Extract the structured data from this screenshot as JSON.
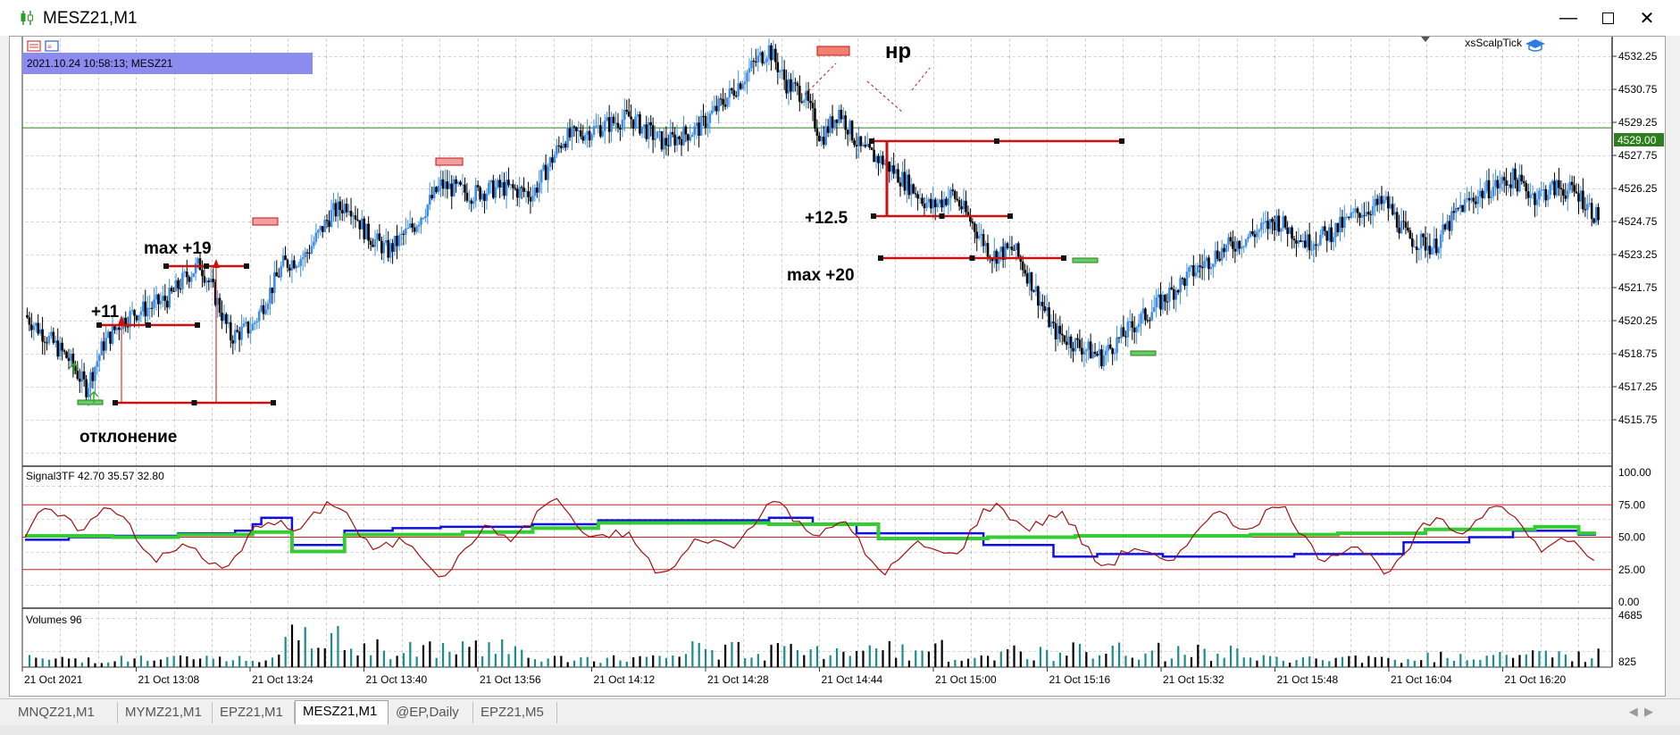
{
  "window": {
    "title": "MESZ21,M1",
    "minimize_icon": "minimize-icon",
    "maximize_icon": "maximize-icon",
    "close_icon": "close-icon"
  },
  "chart": {
    "info_box": "2021.10.24 10:58:13; MESZ21",
    "expert_name": "xsScalpTick",
    "current_price": "4529.00",
    "price_ticks": [
      "4532.25",
      "4530.75",
      "4529.25",
      "4527.75",
      "4526.25",
      "4524.75",
      "4523.25",
      "4521.75",
      "4520.25",
      "4518.75",
      "4517.25",
      "4515.75"
    ],
    "time_ticks": [
      "21 Oct 2021",
      "21 Oct 13:08",
      "21 Oct 13:24",
      "21 Oct 13:40",
      "21 Oct 13:56",
      "21 Oct 14:12",
      "21 Oct 14:28",
      "21 Oct 14:44",
      "21 Oct 15:00",
      "21 Oct 15:16",
      "21 Oct 15:32",
      "21 Oct 15:48",
      "21 Oct 16:04",
      "21 Oct 16:20"
    ],
    "annotations": {
      "deviation": "отклонение",
      "plus11": "+11",
      "max19": "max +19",
      "np": "нр",
      "plus12_5": "+12.5",
      "max20": "max +20"
    },
    "colors": {
      "bull": "#3d8ee8",
      "bear": "#000000",
      "level": "#cc1111",
      "price_line": "#2e7d1e",
      "info_bg": "#8b8bf0"
    }
  },
  "indicator": {
    "label": "Signal3TF 42.70 35.57 32.80",
    "ticks": [
      "100.00",
      "75.00",
      "50.00",
      "25.00",
      "0.00"
    ],
    "levels": [
      75,
      50,
      25
    ],
    "colors": {
      "blue": "#1010e0",
      "green": "#33cc33",
      "darkred": "#a01010"
    }
  },
  "volumes": {
    "label": "Volumes 96",
    "ticks": [
      "4685",
      "825"
    ]
  },
  "tabs": [
    {
      "label": "MNQZ21,M1"
    },
    {
      "label": "MYMZ21,M1"
    },
    {
      "label": "EPZ21,M1"
    },
    {
      "label": "MESZ21,M1"
    },
    {
      "label": "@EP,Daily"
    },
    {
      "label": "EPZ21,M5"
    }
  ],
  "active_tab": 3
}
